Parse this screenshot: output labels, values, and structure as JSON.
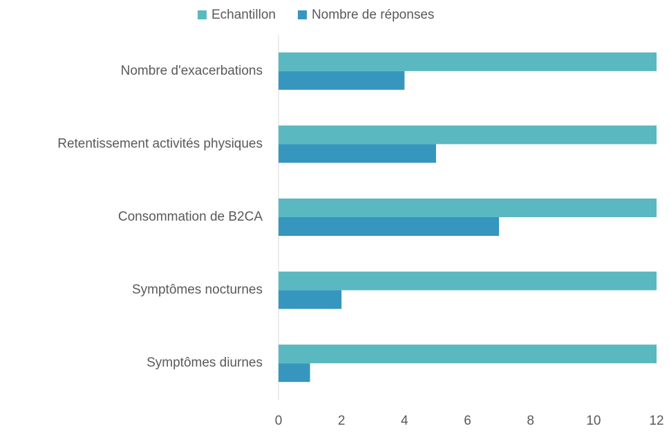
{
  "chart_data": {
    "type": "bar",
    "orientation": "horizontal",
    "categories": [
      "Nombre d'exacerbations",
      "Retentissement activités physiques",
      "Consommation de B2CA",
      "Symptômes nocturnes",
      "Symptômes diurnes"
    ],
    "series": [
      {
        "name": "Echantillon",
        "color": "#5ab8c0",
        "values": [
          12,
          12,
          12,
          12,
          12
        ]
      },
      {
        "name": "Nombre de réponses",
        "color": "#3696be",
        "values": [
          4,
          5,
          7,
          2,
          1
        ]
      }
    ],
    "xlim": [
      0,
      12
    ],
    "xticks": [
      0,
      2,
      4,
      6,
      8,
      10,
      12
    ],
    "grid": false,
    "legend": "top"
  }
}
